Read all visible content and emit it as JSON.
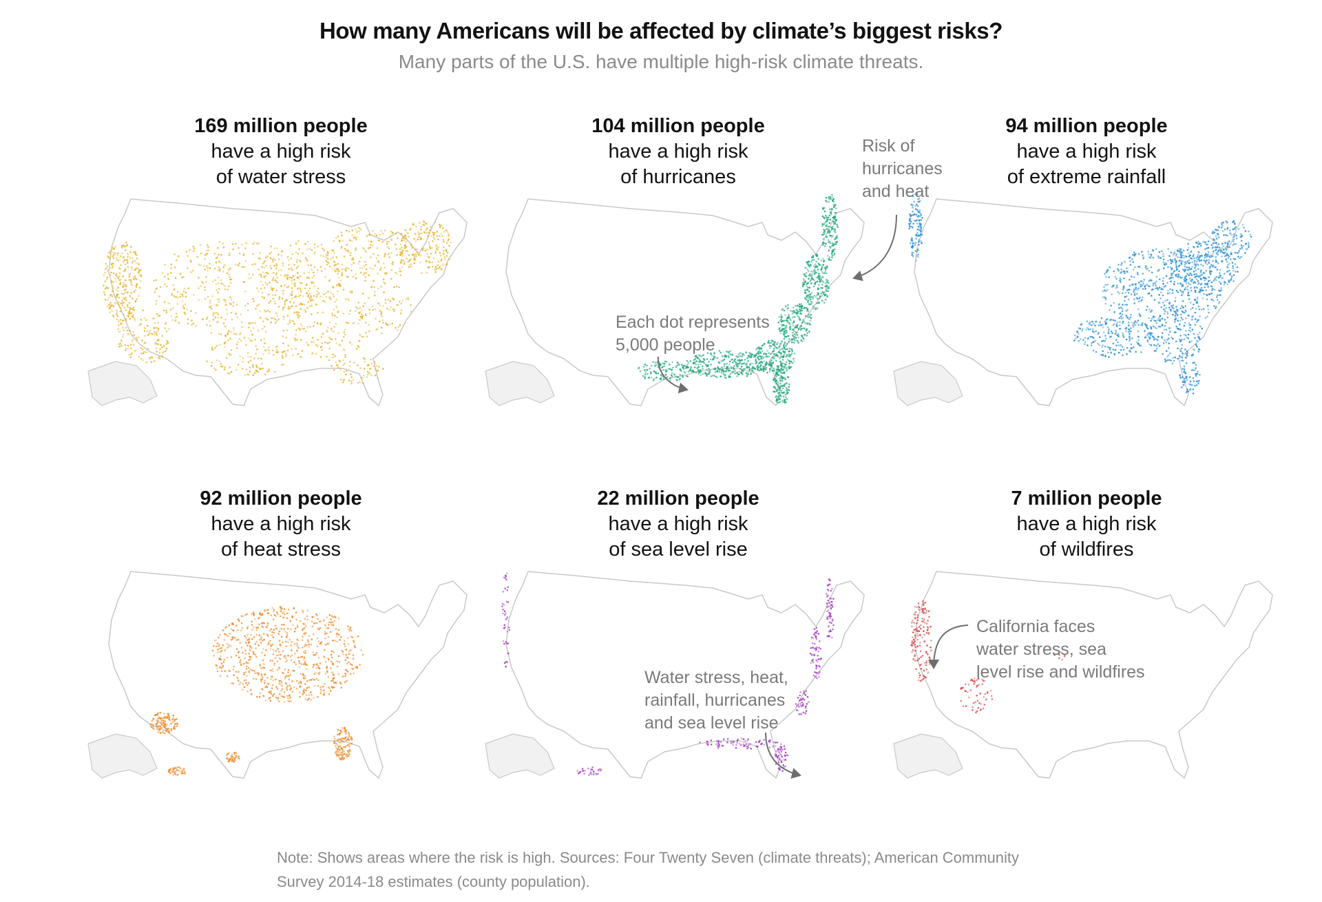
{
  "title": "How many Americans will be affected by climate’s biggest risks?",
  "subtitle": "Many parts of the U.S. have multiple high-risk climate threats.",
  "panels": [
    {
      "count": "169 million people",
      "line1": "have a high risk",
      "line2": "of water stress",
      "color": "#e8b531"
    },
    {
      "count": "104 million people",
      "line1": "have a high risk",
      "line2": "of hurricanes",
      "color": "#25a77d"
    },
    {
      "count": "94 million people",
      "line1": "have a high risk",
      "line2": "of extreme rainfall",
      "color": "#2a8fd4"
    },
    {
      "count": "92 million people",
      "line1": "have a high risk",
      "line2": "of heat stress",
      "color": "#f08c2d"
    },
    {
      "count": "22 million people",
      "line1": "have a high risk",
      "line2": "of sea level rise",
      "color": "#a43fc0"
    },
    {
      "count": "7 million people",
      "line1": "have a high risk",
      "line2": "of wildfires",
      "color": "#d94848"
    }
  ],
  "annotations": {
    "hurricanes_heat": [
      "Risk of",
      "hurricanes",
      "and heat"
    ],
    "dot_legend": [
      "Each dot represents",
      "5,000 people"
    ],
    "multi_risk": [
      "Water stress, heat,",
      "rainfall, hurricanes",
      "and sea level rise"
    ],
    "california": [
      "California faces",
      "water stress, sea",
      "level rise and wildfires"
    ]
  },
  "note": "Note: Shows areas where the risk is high. Sources: Four Twenty Seven (climate threats); American Community Survey 2014-18 estimates (county population)."
}
